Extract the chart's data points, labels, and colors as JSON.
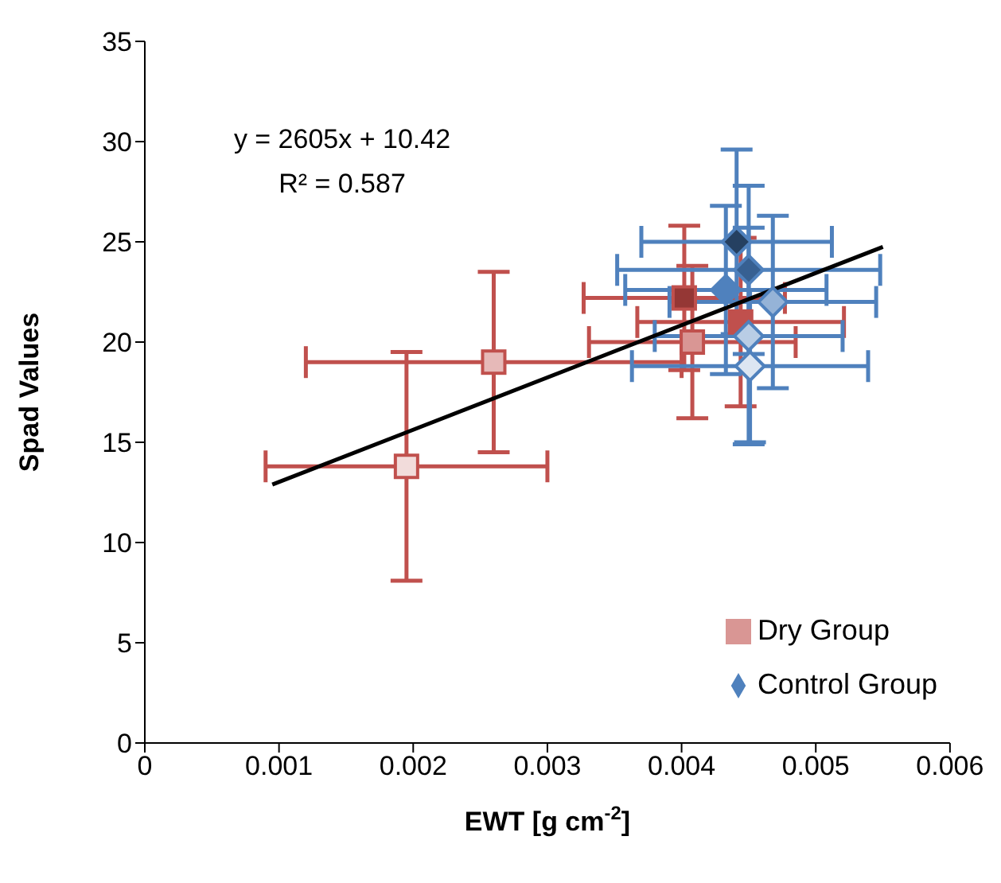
{
  "chart_data": {
    "type": "scatter",
    "xlabel": "EWT [g cm$^{-2}$]",
    "ylabel": "Spad Values",
    "annotations": [
      "y = 2605x + 10.42",
      "R² = 0.587"
    ],
    "xlim": [
      0,
      0.006
    ],
    "xticks": [
      0,
      0.001,
      0.002,
      0.003,
      0.004,
      0.005,
      0.006
    ],
    "ylim": [
      0,
      35
    ],
    "yticks": [
      0,
      5,
      10,
      15,
      20,
      25,
      30,
      35
    ],
    "grid": false,
    "legend": "bottom right",
    "series": [
      {
        "name": "Dry Group",
        "marker": "square",
        "color": "#c0504d",
        "x": [
          0.00195,
          0.0026,
          0.00408,
          0.00444,
          0.00402
        ],
        "values": [
          13.8,
          19.0,
          20.0,
          21.0,
          22.2
        ],
        "colors": [
          "#f2dcdb",
          "#e6b9b8",
          "#d99694",
          "#c0504d",
          "#953735"
        ],
        "errors": [
          5.7,
          4.5,
          3.8,
          4.2,
          3.6
        ],
        "xerrors": [
          0.00105,
          0.0014,
          0.00077,
          0.00077,
          0.00075
        ]
      },
      {
        "name": "Control Group",
        "marker": "diamond",
        "color": "#4f81bd",
        "x": [
          0.00451,
          0.0045,
          0.00468,
          0.00433,
          0.0045,
          0.00441
        ],
        "values": [
          18.8,
          20.3,
          22.0,
          22.6,
          23.6,
          25.0
        ],
        "colors": [
          "#dce6f2",
          "#b9cde5",
          "#95b3d7",
          "#4f81bd",
          "#376092",
          "#254061"
        ],
        "errors": [
          3.8,
          5.4,
          4.3,
          4.2,
          4.2,
          4.6
        ],
        "xerrors": [
          0.00088,
          0.0007,
          0.00077,
          0.00075,
          0.00098,
          0.00071
        ]
      },
      {
        "type": "line",
        "marker": "none",
        "color": "#000000",
        "x": [
          0.00095,
          0.0055
        ],
        "values": [
          12.89,
          24.75
        ]
      }
    ]
  }
}
